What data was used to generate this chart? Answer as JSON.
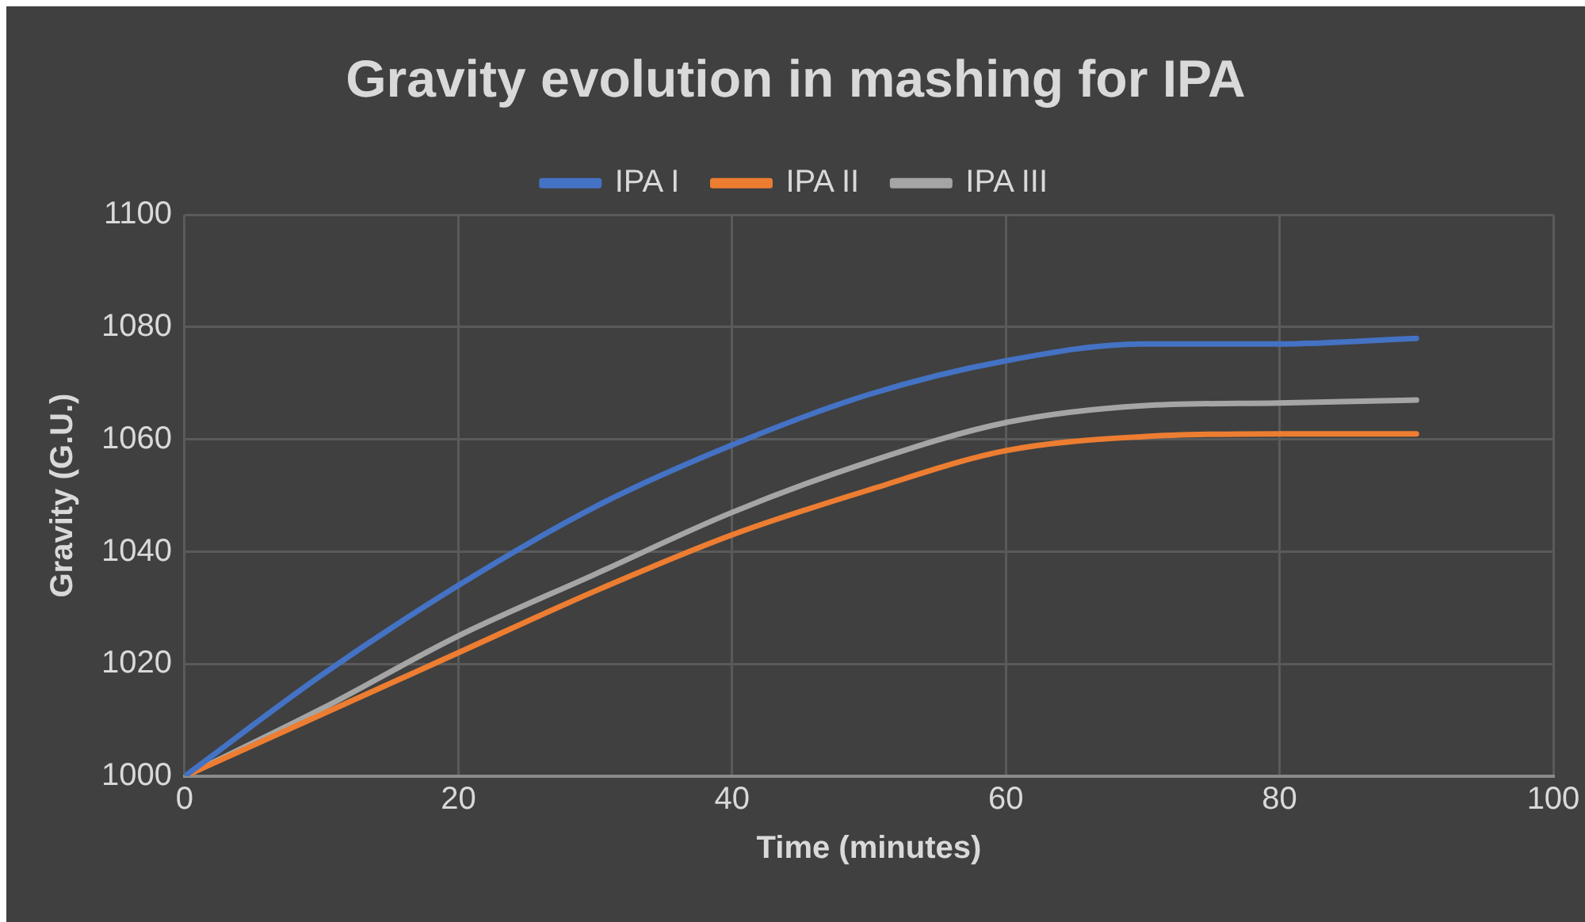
{
  "chart_data": {
    "type": "line",
    "title": "Gravity evolution in mashing for IPA",
    "xlabel": "Time (minutes)",
    "ylabel": "Gravity (G.U.)",
    "x": [
      0,
      10,
      20,
      30,
      40,
      50,
      60,
      70,
      80,
      90
    ],
    "series": [
      {
        "name": "IPA I",
        "color": "#4472c4",
        "values": [
          1000,
          1018,
          1034,
          1048,
          1059,
          1068,
          1074,
          1077,
          1077,
          1078
        ]
      },
      {
        "name": "IPA II",
        "color": "#ed7d31",
        "values": [
          1000,
          1011,
          1022,
          1033,
          1043,
          1051,
          1058,
          1060.5,
          1061,
          1061
        ]
      },
      {
        "name": "IPA III",
        "color": "#a5a5a5",
        "values": [
          1000,
          1012,
          1025,
          1036,
          1047,
          1056,
          1063,
          1066,
          1066.5,
          1067
        ]
      }
    ],
    "xlim": [
      0,
      100
    ],
    "xticks": [
      0,
      20,
      40,
      60,
      80,
      100
    ],
    "ylim": [
      1000,
      1100
    ],
    "yticks": [
      1000,
      1020,
      1040,
      1060,
      1080,
      1100
    ],
    "grid": true,
    "legend": "top",
    "marker": "none",
    "line_style": "solid"
  }
}
